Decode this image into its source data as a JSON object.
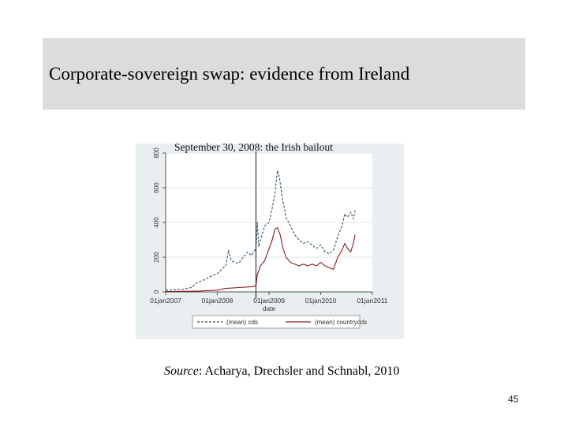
{
  "slide": {
    "title": "Corporate-sovereign swap: evidence from Ireland",
    "source_label": "Source",
    "source_text": ": Acharya, Drechsler and  Schnabl, 2010",
    "page_number": "45"
  },
  "colors": {
    "cds": "#2f4f66",
    "countrycds": "#8b1a1a",
    "panel_background": "#e9eef1",
    "title_band": "#dcdcdc"
  },
  "chart_data": {
    "type": "line",
    "title": "",
    "xlabel": "date",
    "ylabel": "",
    "annotation": {
      "label": "September 30, 2008: the Irish bailout",
      "x": "2008-09-30"
    },
    "xticks": [
      "01jan2007",
      "01jan2008",
      "01jan2009",
      "01jan2010",
      "01jan2011"
    ],
    "yticks": [
      "0",
      "200",
      "400",
      "600",
      "800"
    ],
    "xlim": [
      "2007-01-01",
      "2011-01-01"
    ],
    "ylim": [
      0,
      800
    ],
    "grid": true,
    "legend_position": "bottom",
    "series": [
      {
        "name": "(mean) cds",
        "style": "dashed",
        "points": [
          [
            "2007-01-01",
            10
          ],
          [
            "2007-03-01",
            12
          ],
          [
            "2007-05-01",
            14
          ],
          [
            "2007-07-01",
            25
          ],
          [
            "2007-08-15",
            55
          ],
          [
            "2007-10-01",
            70
          ],
          [
            "2007-11-15",
            90
          ],
          [
            "2008-01-01",
            105
          ],
          [
            "2008-02-01",
            130
          ],
          [
            "2008-03-01",
            150
          ],
          [
            "2008-03-20",
            240
          ],
          [
            "2008-04-10",
            180
          ],
          [
            "2008-05-01",
            170
          ],
          [
            "2008-06-01",
            165
          ],
          [
            "2008-07-01",
            200
          ],
          [
            "2008-08-01",
            230
          ],
          [
            "2008-09-01",
            210
          ],
          [
            "2008-09-30",
            250
          ],
          [
            "2008-10-10",
            400
          ],
          [
            "2008-10-20",
            260
          ],
          [
            "2008-11-01",
            300
          ],
          [
            "2008-12-01",
            380
          ],
          [
            "2009-01-01",
            400
          ],
          [
            "2009-01-20",
            470
          ],
          [
            "2009-02-10",
            560
          ],
          [
            "2009-03-01",
            700
          ],
          [
            "2009-03-15",
            660
          ],
          [
            "2009-04-01",
            560
          ],
          [
            "2009-05-01",
            430
          ],
          [
            "2009-06-01",
            380
          ],
          [
            "2009-07-01",
            330
          ],
          [
            "2009-08-01",
            300
          ],
          [
            "2009-09-01",
            280
          ],
          [
            "2009-10-01",
            290
          ],
          [
            "2009-11-01",
            270
          ],
          [
            "2009-12-01",
            250
          ],
          [
            "2010-01-01",
            270
          ],
          [
            "2010-02-01",
            230
          ],
          [
            "2010-03-01",
            220
          ],
          [
            "2010-04-01",
            240
          ],
          [
            "2010-05-01",
            320
          ],
          [
            "2010-06-01",
            380
          ],
          [
            "2010-06-20",
            450
          ],
          [
            "2010-07-10",
            430
          ],
          [
            "2010-08-01",
            460
          ],
          [
            "2010-08-20",
            420
          ],
          [
            "2010-09-01",
            470
          ]
        ]
      },
      {
        "name": "(mean) countrycds",
        "style": "solid",
        "points": [
          [
            "2007-01-01",
            2
          ],
          [
            "2007-03-01",
            2
          ],
          [
            "2007-06-01",
            3
          ],
          [
            "2007-09-01",
            5
          ],
          [
            "2008-01-01",
            10
          ],
          [
            "2008-03-01",
            20
          ],
          [
            "2008-06-01",
            25
          ],
          [
            "2008-09-01",
            30
          ],
          [
            "2008-09-30",
            35
          ],
          [
            "2008-10-10",
            100
          ],
          [
            "2008-11-01",
            150
          ],
          [
            "2008-12-01",
            180
          ],
          [
            "2009-01-01",
            250
          ],
          [
            "2009-01-20",
            290
          ],
          [
            "2009-02-10",
            360
          ],
          [
            "2009-03-01",
            370
          ],
          [
            "2009-03-20",
            330
          ],
          [
            "2009-04-10",
            250
          ],
          [
            "2009-05-01",
            200
          ],
          [
            "2009-06-01",
            170
          ],
          [
            "2009-07-01",
            160
          ],
          [
            "2009-08-01",
            150
          ],
          [
            "2009-09-01",
            160
          ],
          [
            "2009-10-01",
            150
          ],
          [
            "2009-11-01",
            160
          ],
          [
            "2009-12-01",
            150
          ],
          [
            "2010-01-01",
            170
          ],
          [
            "2010-02-01",
            150
          ],
          [
            "2010-03-01",
            140
          ],
          [
            "2010-04-01",
            130
          ],
          [
            "2010-05-01",
            200
          ],
          [
            "2010-06-01",
            240
          ],
          [
            "2010-06-20",
            280
          ],
          [
            "2010-07-10",
            250
          ],
          [
            "2010-08-01",
            230
          ],
          [
            "2010-08-20",
            280
          ],
          [
            "2010-09-01",
            330
          ]
        ]
      }
    ]
  }
}
